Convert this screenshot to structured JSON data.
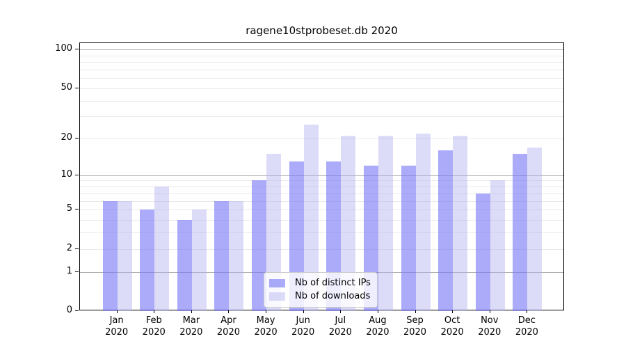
{
  "title": "ragene10stprobeset.db 2020",
  "chart_data": {
    "type": "bar",
    "y_scale": "log10(1+value)",
    "title": "ragene10stprobeset.db 2020",
    "categories": [
      "Jan",
      "Feb",
      "Mar",
      "Apr",
      "May",
      "Jun",
      "Jul",
      "Aug",
      "Sep",
      "Oct",
      "Nov",
      "Dec"
    ],
    "x_year_label": "2020",
    "series": [
      {
        "name": "Nb of distinct IPs",
        "color": "rgba(120,120,245,0.62)",
        "values": [
          6,
          5,
          4,
          6,
          9,
          13,
          13,
          12,
          12,
          16,
          7,
          15
        ]
      },
      {
        "name": "Nb of downloads",
        "color": "rgba(178,178,240,0.45)",
        "values": [
          6,
          8,
          5,
          6,
          15,
          26,
          21,
          21,
          22,
          21,
          9,
          17
        ]
      }
    ],
    "y_ticks": [
      0,
      1,
      2,
      5,
      10,
      20,
      50,
      100
    ],
    "y_major_gridlines": [
      1,
      10,
      100
    ],
    "y_minor_gridlines": [
      2,
      3,
      4,
      5,
      6,
      7,
      8,
      9,
      20,
      30,
      40,
      50,
      60,
      70,
      80,
      90
    ],
    "ylim": [
      0,
      112
    ],
    "grid": "on",
    "legend_position": "bottom-center",
    "colors": {
      "major_grid": "#b0b0b0",
      "minor_grid": "#e9e9e9",
      "axis": "#000000",
      "text": "#000000"
    }
  }
}
